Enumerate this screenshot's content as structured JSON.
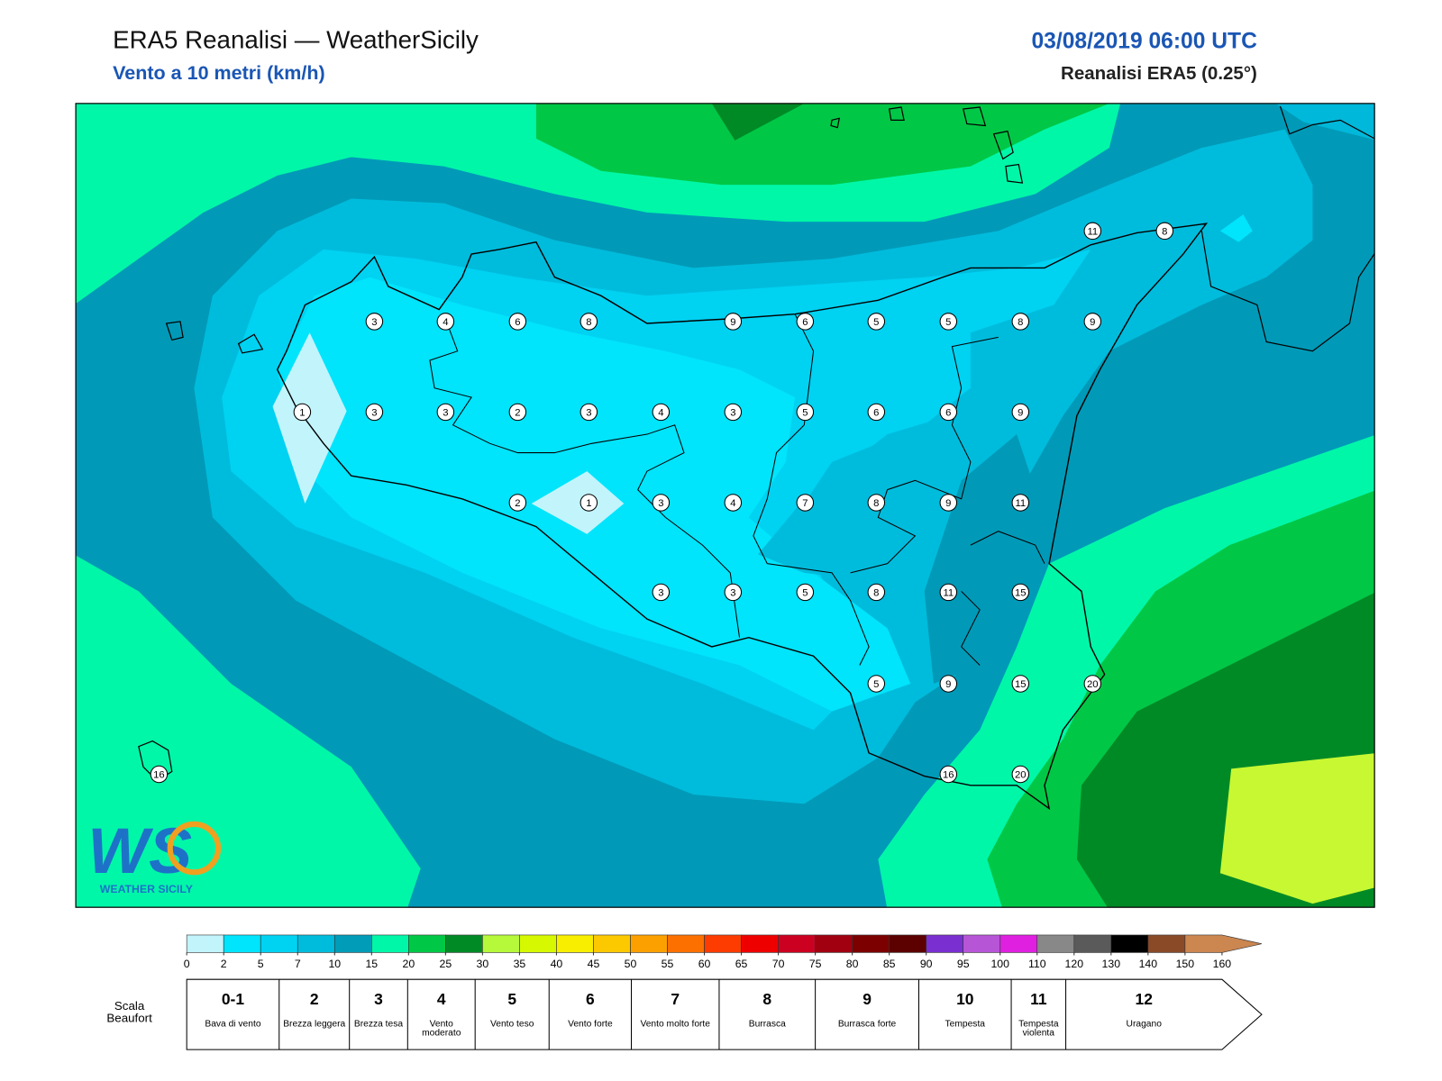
{
  "header": {
    "title": "ERA5 Reanalisi — WeatherSicily",
    "subtitle": "Vento a 10 metri (km/h)",
    "datetime": "03/08/2019 06:00 UTC",
    "source": "Reanalisi ERA5 (0.25°)"
  },
  "stations": [
    3,
    4,
    6,
    8,
    9,
    6,
    5,
    5,
    8,
    9,
    1,
    3,
    3,
    2,
    3,
    4,
    3,
    5,
    6,
    6,
    9,
    2,
    1,
    3,
    4,
    7,
    8,
    9,
    11,
    3,
    3,
    5,
    8,
    11,
    15,
    5,
    9,
    15,
    20,
    16,
    20,
    11,
    8,
    16
  ],
  "logo": {
    "text": "WEATHER SICILY"
  },
  "colorbar": {
    "ticks": [
      0,
      2,
      5,
      7,
      10,
      15,
      20,
      25,
      30,
      35,
      40,
      45,
      50,
      55,
      60,
      65,
      70,
      75,
      80,
      85,
      90,
      95,
      100,
      110,
      120,
      130,
      140,
      150,
      160
    ],
    "colors": [
      "#c2f4fc",
      "#00e4fc",
      "#00d2f2",
      "#00bcdc",
      "#009cb8",
      "#00f7a8",
      "#00c846",
      "#008a26",
      "#b6f83a",
      "#d6f800",
      "#f8ee00",
      "#fcc800",
      "#fca000",
      "#fc7000",
      "#fc3c00",
      "#ee0000",
      "#cc0020",
      "#a00010",
      "#7c0000",
      "#5c0000",
      "#7a30d0",
      "#b656d6",
      "#e020e0",
      "#888888",
      "#5a5a5a",
      "#000000",
      "#8a4a28",
      "#cc8650"
    ]
  },
  "beaufort": {
    "title": "Scala Beaufort",
    "scale": [
      {
        "force": "0-1",
        "label": "Bava di vento"
      },
      {
        "force": 2,
        "label": "Brezza leggera"
      },
      {
        "force": 3,
        "label": "Brezza tesa"
      },
      {
        "force": 4,
        "label": "Vento moderato"
      },
      {
        "force": 5,
        "label": "Vento teso"
      },
      {
        "force": 6,
        "label": "Vento forte"
      },
      {
        "force": 7,
        "label": "Vento molto forte"
      },
      {
        "force": 8,
        "label": "Burrasca"
      },
      {
        "force": 9,
        "label": "Burrasca forte"
      },
      {
        "force": 10,
        "label": "Tempesta"
      },
      {
        "force": 11,
        "label": "Tempesta violenta"
      },
      {
        "force": 12,
        "label": "Uragano"
      }
    ]
  }
}
